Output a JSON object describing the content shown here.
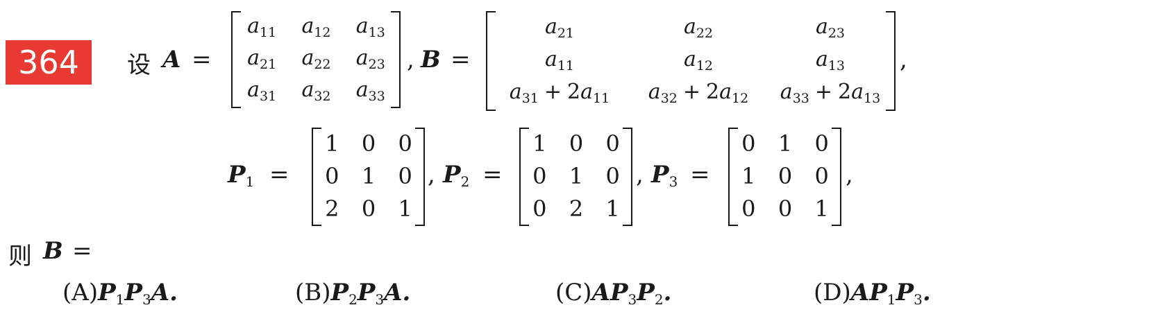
{
  "problem_number": "364",
  "intro": "设",
  "A_label": "A",
  "B_label": "B",
  "eq": "=",
  "comma": ",",
  "matrix_A": [
    [
      "a11",
      "a12",
      "a13"
    ],
    [
      "a21",
      "a22",
      "a23"
    ],
    [
      "a31",
      "a32",
      "a33"
    ]
  ],
  "matrix_B": [
    [
      "a21",
      "a22",
      "a23"
    ],
    [
      "a11",
      "a12",
      "a13"
    ],
    [
      "a31 + 2a11",
      "a32 + 2a12",
      "a33 + 2a13"
    ]
  ],
  "P1": [
    [
      "1",
      "0",
      "0"
    ],
    [
      "0",
      "1",
      "0"
    ],
    [
      "2",
      "0",
      "1"
    ]
  ],
  "P2": [
    [
      "1",
      "0",
      "0"
    ],
    [
      "0",
      "1",
      "0"
    ],
    [
      "0",
      "2",
      "1"
    ]
  ],
  "P3": [
    [
      "0",
      "1",
      "0"
    ],
    [
      "1",
      "0",
      "0"
    ],
    [
      "0",
      "0",
      "1"
    ]
  ],
  "then": "则",
  "options": [
    {
      "label": "(A)",
      "expr": "P1P3A."
    },
    {
      "label": "(B)",
      "expr": "P2P3A."
    },
    {
      "label": "(C)",
      "expr": "AP3P2."
    },
    {
      "label": "(D)",
      "expr": "AP1P3."
    }
  ]
}
